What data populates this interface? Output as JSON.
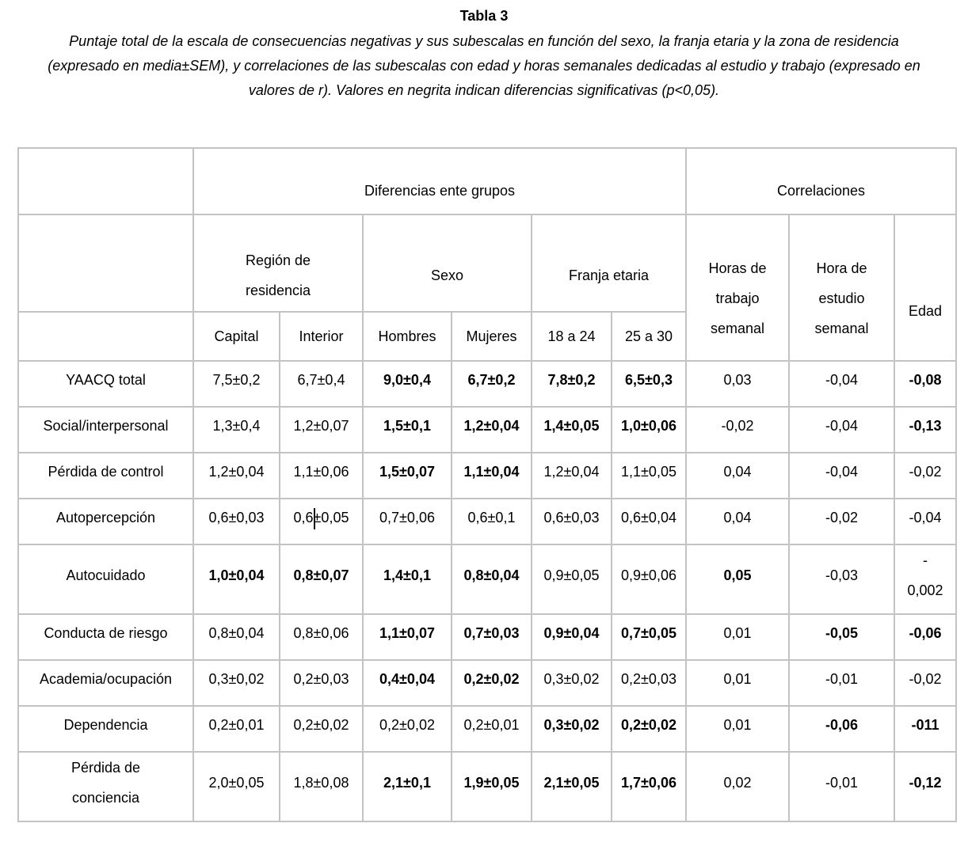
{
  "page": {
    "title": "Tabla 3",
    "caption_lines": [
      "Puntaje total de la escala de consecuencias negativas y sus subescalas en función del sexo, la franja etaria y la zona de residencia",
      "(expresado en media±SEM), y correlaciones de las subescalas con edad y horas semanales dedicadas al estudio y trabajo (expresado en",
      "valores de r). Valores en negrita indican diferencias significativas (p<0,05)."
    ]
  },
  "table": {
    "header": {
      "diferencias": "Diferencias ente grupos",
      "correlaciones": "Correlaciones",
      "region": "Región de\nresidencia",
      "sexo": "Sexo",
      "franja": "Franja etaria",
      "horas_trabajo": "Horas de\ntrabajo\nsemanal",
      "hora_estudio": "Hora de\nestudio\nsemanal",
      "edad": "Edad",
      "capital": "Capital",
      "interior": "Interior",
      "hombres": "Hombres",
      "mujeres": "Mujeres",
      "franja_18_24": "18 a 24",
      "franja_25_30": "25 a 30"
    },
    "column_keys": [
      "capital",
      "interior",
      "hombres",
      "mujeres",
      "18-a-24",
      "25-a-30",
      "horas-trabajo",
      "hora-estudio",
      "edad"
    ],
    "rows": [
      {
        "key": "yaacq-total",
        "label": "YAACQ total",
        "cells": [
          {
            "v": "7,5±0,2",
            "b": false
          },
          {
            "v": "6,7±0,4",
            "b": false
          },
          {
            "v": "9,0±0,4",
            "b": true
          },
          {
            "v": "6,7±0,2",
            "b": true
          },
          {
            "v": "7,8±0,2",
            "b": true
          },
          {
            "v": "6,5±0,3",
            "b": true
          },
          {
            "v": "0,03",
            "b": false
          },
          {
            "v": "-0,04",
            "b": false
          },
          {
            "v": "-0,08",
            "b": true
          }
        ]
      },
      {
        "key": "social-interpersonal",
        "label": "Social/interpersonal",
        "cells": [
          {
            "v": "1,3±0,4",
            "b": false
          },
          {
            "v": "1,2±0,07",
            "b": false
          },
          {
            "v": "1,5±0,1",
            "b": true
          },
          {
            "v": "1,2±0,04",
            "b": true
          },
          {
            "v": "1,4±0,05",
            "b": true
          },
          {
            "v": "1,0±0,06",
            "b": true
          },
          {
            "v": "-0,02",
            "b": false
          },
          {
            "v": "-0,04",
            "b": false
          },
          {
            "v": "-0,13",
            "b": true
          }
        ]
      },
      {
        "key": "perdida-de-control",
        "label": "Pérdida de control",
        "cells": [
          {
            "v": "1,2±0,04",
            "b": false
          },
          {
            "v": "1,1±0,06",
            "b": false
          },
          {
            "v": "1,5±0,07",
            "b": true
          },
          {
            "v": "1,1±0,04",
            "b": true
          },
          {
            "v": "1,2±0,04",
            "b": false
          },
          {
            "v": "1,1±0,05",
            "b": false
          },
          {
            "v": "0,04",
            "b": false
          },
          {
            "v": "-0,04",
            "b": false
          },
          {
            "v": "-0,02",
            "b": false
          }
        ]
      },
      {
        "key": "autopercepcion",
        "label": "Autopercepción",
        "cells": [
          {
            "v": "0,6±0,03",
            "b": false
          },
          {
            "v": "0,6±0,05",
            "b": false,
            "caret": true
          },
          {
            "v": "0,7±0,06",
            "b": false
          },
          {
            "v": "0,6±0,1",
            "b": false
          },
          {
            "v": "0,6±0,03",
            "b": false
          },
          {
            "v": "0,6±0,04",
            "b": false
          },
          {
            "v": "0,04",
            "b": false
          },
          {
            "v": "-0,02",
            "b": false
          },
          {
            "v": "-0,04",
            "b": false
          }
        ]
      },
      {
        "key": "autocuidado",
        "label": "Autocuidado",
        "cells": [
          {
            "v": "1,0±0,04",
            "b": true
          },
          {
            "v": "0,8±0,07",
            "b": true
          },
          {
            "v": "1,4±0,1",
            "b": true
          },
          {
            "v": "0,8±0,04",
            "b": true
          },
          {
            "v": "0,9±0,05",
            "b": false
          },
          {
            "v": "0,9±0,06",
            "b": false
          },
          {
            "v": "0,05",
            "b": true
          },
          {
            "v": "-0,03",
            "b": false
          },
          {
            "v": "-\n0,002",
            "b": false
          }
        ]
      },
      {
        "key": "conducta-de-riesgo",
        "label": "Conducta de riesgo",
        "cells": [
          {
            "v": "0,8±0,04",
            "b": false
          },
          {
            "v": "0,8±0,06",
            "b": false
          },
          {
            "v": "1,1±0,07",
            "b": true
          },
          {
            "v": "0,7±0,03",
            "b": true
          },
          {
            "v": "0,9±0,04",
            "b": true
          },
          {
            "v": "0,7±0,05",
            "b": true
          },
          {
            "v": "0,01",
            "b": false
          },
          {
            "v": "-0,05",
            "b": true
          },
          {
            "v": "-0,06",
            "b": true
          }
        ]
      },
      {
        "key": "academia-ocupacion",
        "label": "Academia/ocupación",
        "cells": [
          {
            "v": "0,3±0,02",
            "b": false
          },
          {
            "v": "0,2±0,03",
            "b": false
          },
          {
            "v": "0,4±0,04",
            "b": true
          },
          {
            "v": "0,2±0,02",
            "b": true
          },
          {
            "v": "0,3±0,02",
            "b": false
          },
          {
            "v": "0,2±0,03",
            "b": false
          },
          {
            "v": "0,01",
            "b": false
          },
          {
            "v": "-0,01",
            "b": false
          },
          {
            "v": "-0,02",
            "b": false
          }
        ]
      },
      {
        "key": "dependencia",
        "label": "Dependencia",
        "cells": [
          {
            "v": "0,2±0,01",
            "b": false
          },
          {
            "v": "0,2±0,02",
            "b": false
          },
          {
            "v": "0,2±0,02",
            "b": false
          },
          {
            "v": "0,2±0,01",
            "b": false
          },
          {
            "v": "0,3±0,02",
            "b": true
          },
          {
            "v": "0,2±0,02",
            "b": true
          },
          {
            "v": "0,01",
            "b": false
          },
          {
            "v": "-0,06",
            "b": true
          },
          {
            "v": "-011",
            "b": true
          }
        ]
      },
      {
        "key": "perdida-de-conciencia",
        "label": "Pérdida de\nconciencia",
        "cells": [
          {
            "v": "2,0±0,05",
            "b": false
          },
          {
            "v": "1,8±0,08",
            "b": false
          },
          {
            "v": "2,1±0,1",
            "b": true
          },
          {
            "v": "1,9±0,05",
            "b": true
          },
          {
            "v": "2,1±0,05",
            "b": true
          },
          {
            "v": "1,7±0,06",
            "b": true
          },
          {
            "v": "0,02",
            "b": false
          },
          {
            "v": "-0,01",
            "b": false
          },
          {
            "v": "-0,12",
            "b": true
          }
        ]
      }
    ]
  }
}
